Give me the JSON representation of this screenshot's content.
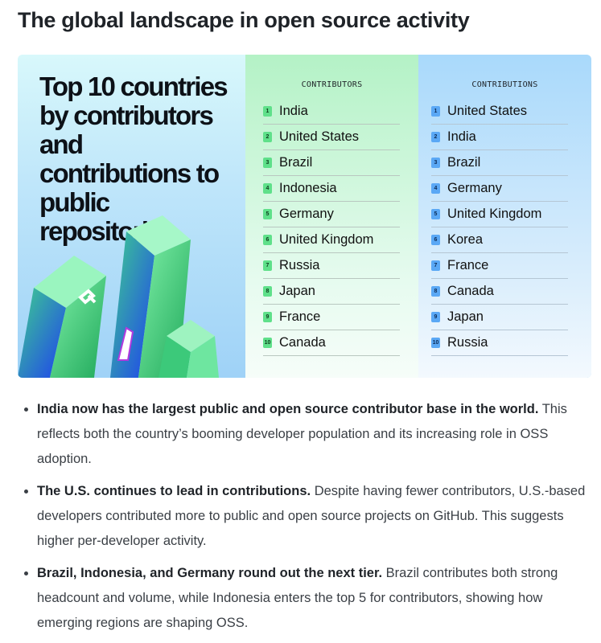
{
  "heading": "The global landscape in open source activity",
  "infographic": {
    "title": "Top 10 countries by contributors and contributions to public repositories",
    "contributors": {
      "header": "CONTRIBUTORS",
      "items": [
        "India",
        "United States",
        "Brazil",
        "Indonesia",
        "Germany",
        "United Kingdom",
        "Russia",
        "Japan",
        "France",
        "Canada"
      ]
    },
    "contributions": {
      "header": "CONTRIBUTIONS",
      "items": [
        "United States",
        "India",
        "Brazil",
        "Germany",
        "United Kingdom",
        "Korea",
        "France",
        "Canada",
        "Japan",
        "Russia"
      ]
    },
    "colors": {
      "green": "#5fe08a",
      "blue": "#5aa8f5"
    }
  },
  "bullets": [
    {
      "bold": "India now has the largest public and open source contributor base in the world.",
      "text": " This reflects both the country’s booming developer population and its increasing role in OSS adoption."
    },
    {
      "bold": "The U.S. continues to lead in contributions.",
      "text": " Despite having fewer contributors, U.S.-based developers contributed more to public and open source projects on GitHub. This suggests higher per-developer activity."
    },
    {
      "bold": "Brazil, Indonesia, and Germany round out the next tier.",
      "text": " Brazil contributes both strong headcount and volume, while Indonesia enters the top 5 for contributors, showing how emerging regions are shaping OSS."
    }
  ]
}
